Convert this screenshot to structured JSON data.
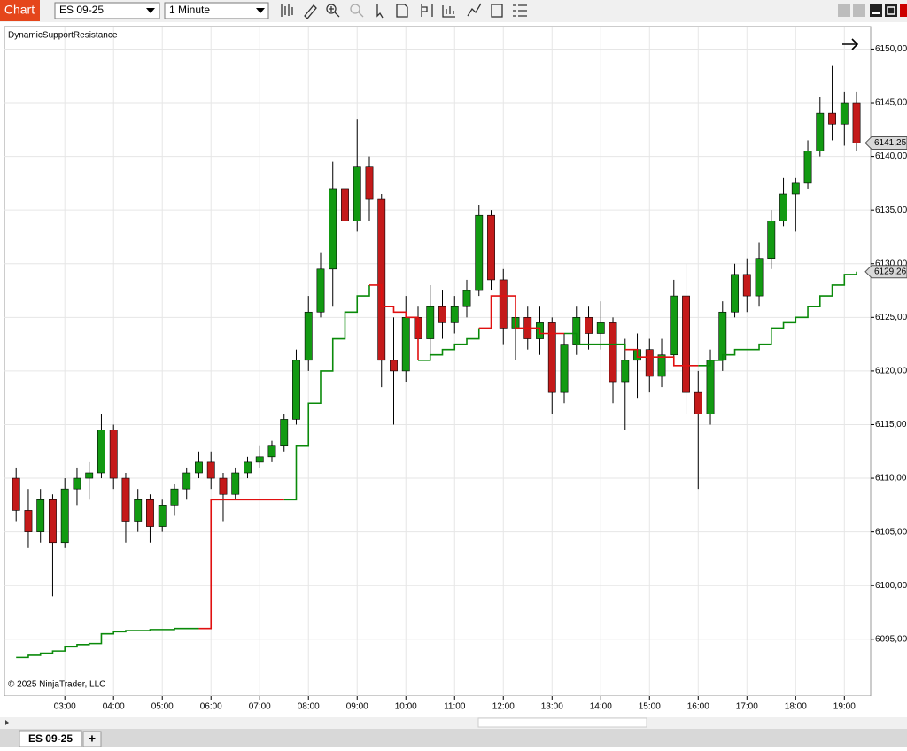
{
  "toolbar": {
    "app": "Chart",
    "instrument": "ES 09-25",
    "interval": "1 Minute"
  },
  "tabs": {
    "active": "ES 09-25",
    "add": "+"
  },
  "chart_data": {
    "type": "candlestick",
    "title": "DynamicSupportResistance",
    "copyright": "© 2025 NinjaTrader, LLC",
    "xlim": [
      1.76,
      19.54
    ],
    "xticks": [
      {
        "value": 3,
        "label": "03:00"
      },
      {
        "value": 4,
        "label": "04:00"
      },
      {
        "value": 5,
        "label": "05:00"
      },
      {
        "value": 6,
        "label": "06:00"
      },
      {
        "value": 7,
        "label": "07:00"
      },
      {
        "value": 8,
        "label": "08:00"
      },
      {
        "value": 9,
        "label": "09:00"
      },
      {
        "value": 10,
        "label": "10:00"
      },
      {
        "value": 11,
        "label": "11:00"
      },
      {
        "value": 12,
        "label": "12:00"
      },
      {
        "value": 13,
        "label": "13:00"
      },
      {
        "value": 14,
        "label": "14:00"
      },
      {
        "value": 15,
        "label": "15:00"
      },
      {
        "value": 16,
        "label": "16:00"
      },
      {
        "value": 17,
        "label": "17:00"
      },
      {
        "value": 18,
        "label": "18:00"
      },
      {
        "value": 19,
        "label": "19:00"
      }
    ],
    "ylim": [
      6089.7,
      6152.1
    ],
    "yticks": [
      {
        "value": 6095,
        "label": "6095,00"
      },
      {
        "value": 6100,
        "label": "6100,00"
      },
      {
        "value": 6105,
        "label": "6105,00"
      },
      {
        "value": 6110,
        "label": "6110,00"
      },
      {
        "value": 6115,
        "label": "6115,00"
      },
      {
        "value": 6120,
        "label": "6120,00"
      },
      {
        "value": 6125,
        "label": "6125,00"
      },
      {
        "value": 6130,
        "label": "6130,00"
      },
      {
        "value": 6135,
        "label": "6135,00"
      },
      {
        "value": 6140,
        "label": "6140,00"
      },
      {
        "value": 6145,
        "label": "6145,00"
      },
      {
        "value": 6150,
        "label": "6150,00"
      }
    ],
    "grid": true,
    "up_color": "#129a12",
    "down_color": "#c41a1a",
    "wick_color": "#000000",
    "x": [
      2.0,
      2.25,
      2.5,
      2.75,
      3.0,
      3.25,
      3.5,
      3.75,
      4.0,
      4.25,
      4.5,
      4.75,
      5.0,
      5.25,
      5.5,
      5.75,
      6.0,
      6.25,
      6.5,
      6.75,
      7.0,
      7.25,
      7.5,
      7.75,
      8.0,
      8.25,
      8.5,
      8.75,
      9.0,
      9.25,
      9.5,
      9.75,
      10.0,
      10.25,
      10.5,
      10.75,
      11.0,
      11.25,
      11.5,
      11.75,
      12.0,
      12.25,
      12.5,
      12.75,
      13.0,
      13.25,
      13.5,
      13.75,
      14.0,
      14.25,
      14.5,
      14.75,
      15.0,
      15.25,
      15.5,
      15.75,
      16.0,
      16.25,
      16.5,
      16.75,
      17.0,
      17.25,
      17.5,
      17.75,
      18.0,
      18.25,
      18.5,
      18.75,
      19.0,
      19.25
    ],
    "open": [
      6110,
      6107,
      6105,
      6108,
      6104,
      6109,
      6110,
      6110.5,
      6114.5,
      6110,
      6106,
      6108,
      6105.5,
      6107.5,
      6109,
      6110.5,
      6111.5,
      6110,
      6108.5,
      6110.5,
      6111.5,
      6112,
      6113,
      6115.5,
      6121,
      6125.5,
      6129.5,
      6137,
      6134,
      6139,
      6136,
      6121,
      6120,
      6125,
      6123,
      6126,
      6124.5,
      6126,
      6127.5,
      6134.5,
      6128.5,
      6124,
      6125,
      6123,
      6124.5,
      6118,
      6122.5,
      6125,
      6123.5,
      6124.5,
      6119,
      6121,
      6122,
      6119.5,
      6121.5,
      6127,
      6118,
      6116,
      6121,
      6125.5,
      6129,
      6127,
      6130.5,
      6134,
      6136.5,
      6137.5,
      6140.5,
      6144,
      6143,
      6145
    ],
    "high": [
      6111,
      6109,
      6109,
      6108.5,
      6110,
      6111,
      6111.5,
      6116,
      6115,
      6110.5,
      6109,
      6108.5,
      6108,
      6109.5,
      6111,
      6112.5,
      6112.5,
      6110.5,
      6111,
      6112,
      6113,
      6113.5,
      6116,
      6122,
      6127,
      6131,
      6139.5,
      6138,
      6143.5,
      6140,
      6136.5,
      6125,
      6127,
      6126,
      6128,
      6127.5,
      6127,
      6128.5,
      6135.5,
      6135,
      6129.5,
      6126.5,
      6126,
      6126,
      6125,
      6123.5,
      6126,
      6126,
      6126.5,
      6125,
      6123,
      6123.5,
      6123,
      6123,
      6128.5,
      6130,
      6120,
      6122,
      6126.5,
      6130,
      6130.5,
      6132,
      6135,
      6138,
      6138,
      6141.5,
      6145.5,
      6148.5,
      6146,
      6146
    ],
    "low": [
      6106,
      6103.5,
      6104,
      6099,
      6103.5,
      6107.5,
      6108,
      6110,
      6109,
      6104,
      6105,
      6104,
      6105,
      6106.5,
      6108,
      6110,
      6109,
      6106,
      6108,
      6110,
      6111,
      6111.5,
      6112.5,
      6115,
      6120,
      6125,
      6126,
      6132.5,
      6133,
      6134,
      6118.5,
      6115,
      6119,
      6121,
      6121.5,
      6123,
      6123.5,
      6125,
      6127,
      6127.5,
      6122.5,
      6121,
      6122,
      6121.5,
      6116,
      6117,
      6121.5,
      6122,
      6122,
      6117,
      6114.5,
      6117.5,
      6118,
      6118.5,
      6120.5,
      6116,
      6109,
      6115,
      6120,
      6125,
      6125.5,
      6126,
      6129.5,
      6133.5,
      6133,
      6137,
      6140,
      6141.5,
      6141,
      6140.5
    ],
    "close": [
      6107,
      6105,
      6108,
      6104,
      6109,
      6110,
      6110.5,
      6114.5,
      6110,
      6106,
      6108,
      6105.5,
      6107.5,
      6109,
      6110.5,
      6111.5,
      6110,
      6108.5,
      6110.5,
      6111.5,
      6112,
      6113,
      6115.5,
      6121,
      6125.5,
      6129.5,
      6137,
      6134,
      6139,
      6136,
      6121,
      6120,
      6125,
      6123,
      6126,
      6124.5,
      6126,
      6127.5,
      6134.5,
      6128.5,
      6124,
      6125,
      6123,
      6124.5,
      6118,
      6122.5,
      6125,
      6123.5,
      6124.5,
      6119,
      6121,
      6122,
      6119.5,
      6121.5,
      6127,
      6118,
      6116,
      6121,
      6125.5,
      6129,
      6127,
      6130.5,
      6134,
      6136.5,
      6137.5,
      6140.5,
      6144,
      6143,
      6145,
      6141.25
    ],
    "series": [
      {
        "color": "#0a8a0a",
        "values": [
          6093.3,
          6093.5,
          6093.7,
          6093.9,
          6094.3,
          6094.5,
          6094.6,
          6095.5,
          6095.7,
          6095.8,
          6095.8,
          6095.9,
          6095.9,
          6096,
          6096,
          6096,
          null,
          null,
          null,
          null,
          null,
          null,
          6108,
          6113,
          6117,
          6120,
          6123,
          6125.5,
          6127,
          6128,
          null,
          null,
          null,
          6121,
          6121.5,
          6122,
          6122.5,
          6123,
          6124,
          null,
          null,
          null,
          null,
          null,
          null,
          6123.5,
          6122.5,
          6122.5,
          6122.5,
          6122.5,
          6122,
          null,
          null,
          null,
          null,
          null,
          6120.5,
          6121,
          6121.5,
          6122,
          6122,
          6122.5,
          6124,
          6124.5,
          6125,
          6126,
          6127,
          6128,
          6129,
          6129.26
        ]
      },
      {
        "color": "#e01010",
        "values": [
          null,
          null,
          null,
          null,
          null,
          null,
          null,
          null,
          null,
          null,
          null,
          null,
          null,
          null,
          null,
          6096,
          6108,
          6108,
          6108,
          6108,
          6108,
          6108,
          6108,
          null,
          null,
          null,
          null,
          null,
          null,
          6128,
          6126,
          6125.5,
          6125,
          6121,
          null,
          null,
          null,
          null,
          6124,
          6127,
          6127,
          6124,
          6124,
          6123.5,
          6123.5,
          6123.5,
          null,
          null,
          null,
          null,
          6122,
          6121.3,
          6121.3,
          6121.3,
          6120.5,
          6120.5,
          6120.5,
          null,
          null,
          null,
          null,
          null,
          null,
          null,
          null,
          null,
          null,
          null,
          null,
          null
        ]
      }
    ],
    "last_price": {
      "value": 6141.25,
      "label": "6141,25"
    },
    "indicator_last": {
      "value": 6129.26,
      "label": "6129,26"
    }
  }
}
